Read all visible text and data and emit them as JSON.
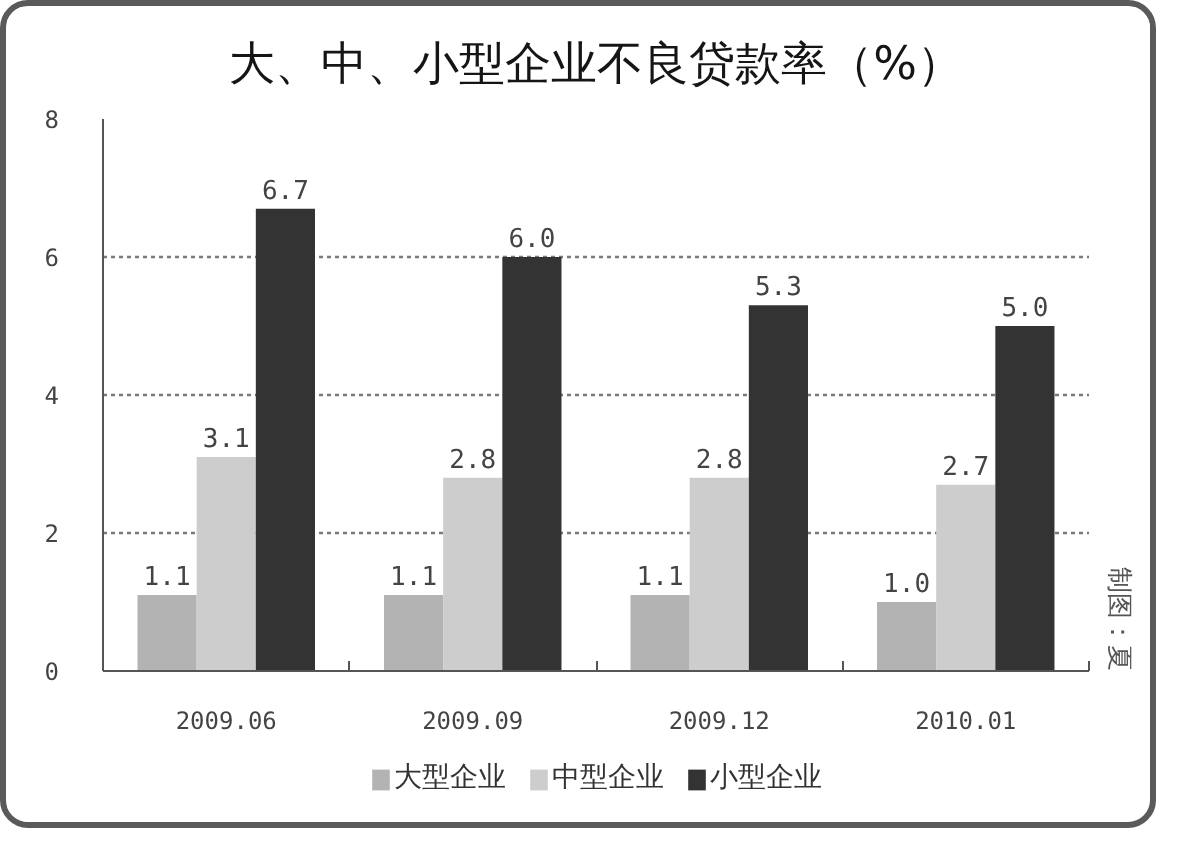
{
  "chart_data": {
    "type": "bar",
    "title": "大、中、小型企业不良贷款率（%）",
    "categories": [
      "2009.06",
      "2009.09",
      "2009.12",
      "2010.01"
    ],
    "series": [
      {
        "name": "大型企业",
        "color": "#b3b3b3",
        "values": [
          1.1,
          1.1,
          1.1,
          1.0
        ],
        "value_labels": [
          "1.1",
          "1.1",
          "1.1",
          "1.0"
        ]
      },
      {
        "name": "中型企业",
        "color": "#cdcdcd",
        "values": [
          3.1,
          2.8,
          2.8,
          2.7
        ],
        "value_labels": [
          "3.1",
          "2.8",
          "2.8",
          "2.7"
        ]
      },
      {
        "name": "小型企业",
        "color": "#333333",
        "values": [
          6.7,
          6.0,
          5.3,
          5.0
        ],
        "value_labels": [
          "6.7",
          "6.0",
          "5.3",
          "5.0"
        ]
      }
    ],
    "ylim": [
      0,
      8
    ],
    "yticks": [
      0,
      2,
      4,
      6,
      8
    ],
    "grid": "y",
    "legend": "bottom",
    "annotations": [
      "制图：夏"
    ]
  }
}
